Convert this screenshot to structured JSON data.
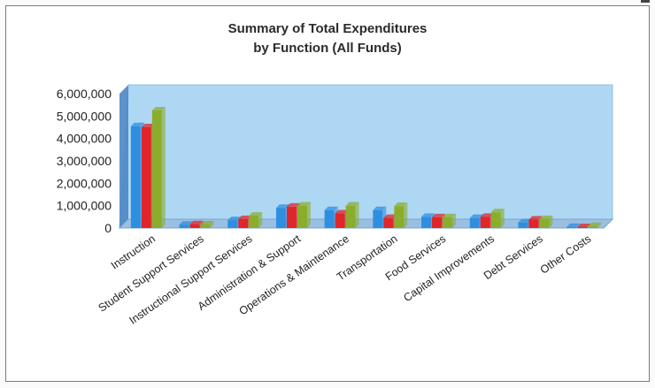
{
  "chart_data": {
    "type": "bar",
    "title_line1": "Summary of Total Expenditures",
    "title_line2": "by Function (All Funds)",
    "categories": [
      "Instruction",
      "Student Support Services",
      "Instructional Support Services",
      "Administration & Support",
      "Operations & Maintenance",
      "Transportation",
      "Food Services",
      "Capital Improvements",
      "Debt Services",
      "Other Costs"
    ],
    "series": [
      {
        "color": "#2e8fe0",
        "values": [
          4550000,
          150000,
          350000,
          900000,
          800000,
          800000,
          500000,
          450000,
          250000,
          50000
        ]
      },
      {
        "color": "#e0262a",
        "values": [
          4500000,
          170000,
          400000,
          950000,
          650000,
          450000,
          480000,
          500000,
          380000,
          40000
        ]
      },
      {
        "color": "#8aad2c",
        "values": [
          5250000,
          160000,
          550000,
          1000000,
          1000000,
          980000,
          480000,
          700000,
          400000,
          90000
        ]
      }
    ],
    "yticks": [
      "6,000,000",
      "5,000,000",
      "4,000,000",
      "3,000,000",
      "2,000,000",
      "1,000,000",
      "0"
    ],
    "ylim": [
      0,
      6000000
    ],
    "grid": false,
    "legend": "none",
    "wall_color": "#aed7f3"
  }
}
